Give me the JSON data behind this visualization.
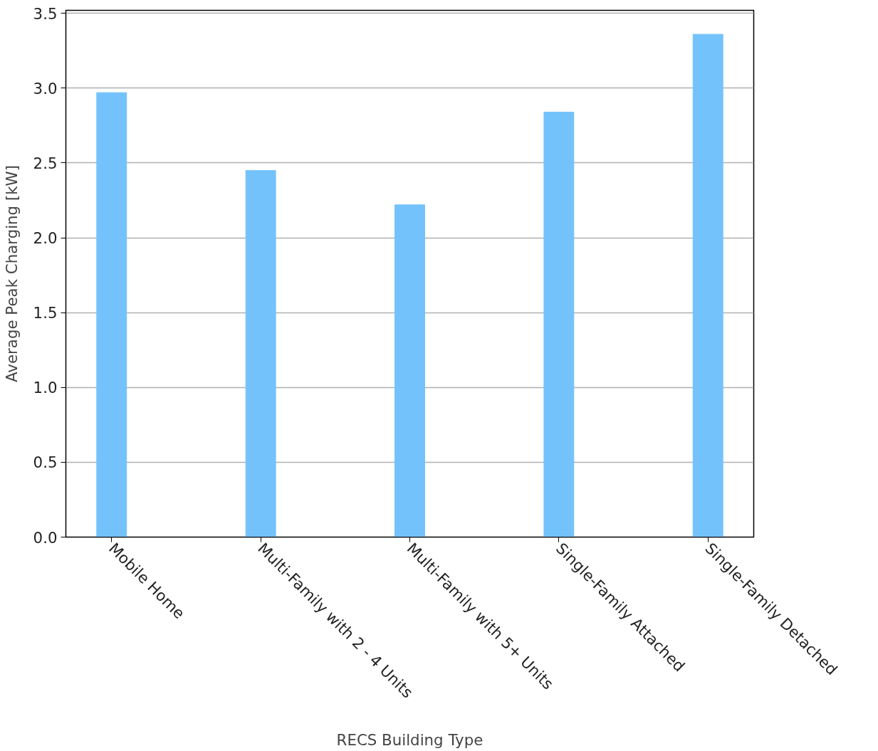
{
  "chart_data": {
    "type": "bar",
    "xlabel": "RECS Building Type",
    "ylabel": "Average Peak Charging [kW]",
    "categories": [
      "Mobile Home",
      "Multi-Family with 2 - 4 Units",
      "Multi-Family with 5+ Units",
      "Single-Family Attached",
      "Single-Family Detached"
    ],
    "values": [
      2.97,
      2.45,
      2.22,
      2.84,
      3.36
    ],
    "color": "#73c2fb",
    "ylim": [
      0,
      3.52
    ],
    "yticks": [
      {
        "value": 0,
        "label": "0.0"
      },
      {
        "value": 0.5,
        "label": "0.5"
      },
      {
        "value": 1,
        "label": "1.0"
      },
      {
        "value": 1.5,
        "label": "1.5"
      },
      {
        "value": 2,
        "label": "2.0"
      },
      {
        "value": 2.5,
        "label": "2.5"
      },
      {
        "value": 3,
        "label": "3.0"
      },
      {
        "value": 3.5,
        "label": "3.5"
      }
    ],
    "grid": "y"
  }
}
